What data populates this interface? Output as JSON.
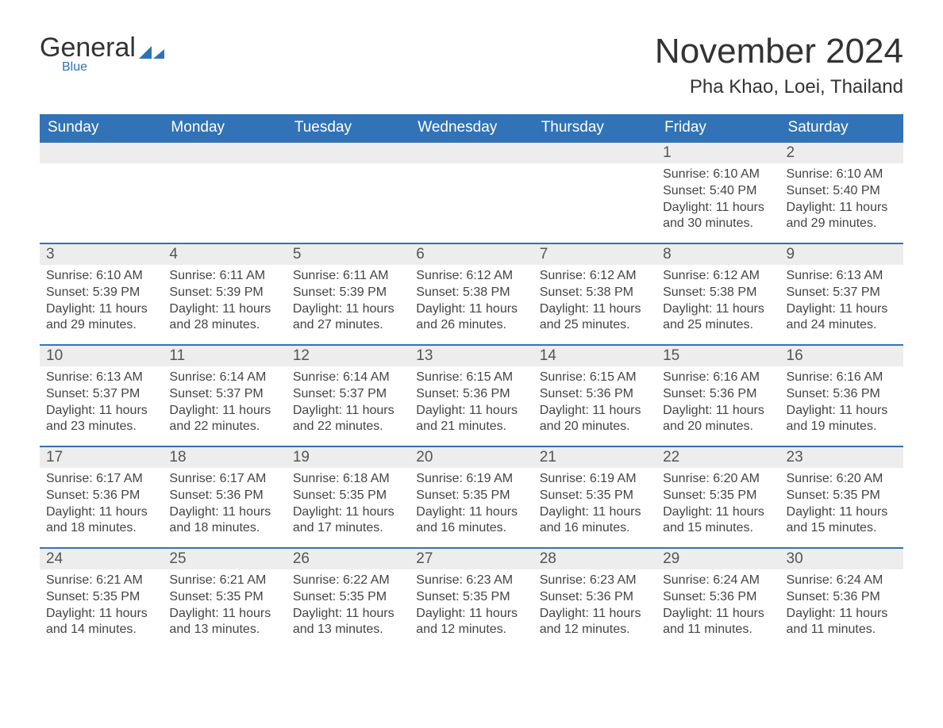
{
  "logo": {
    "general": "General",
    "blue": "Blue"
  },
  "title": "November 2024",
  "location": "Pha Khao, Loei, Thailand",
  "colors": {
    "header_bg": "#3273b7",
    "header_text": "#ffffff",
    "day_num_bg": "#ededed",
    "day_border": "#3273b7",
    "text": "#444444",
    "logo_blue": "#2f72b6",
    "logo_dark": "#333333",
    "background": "#ffffff"
  },
  "day_headers": [
    "Sunday",
    "Monday",
    "Tuesday",
    "Wednesday",
    "Thursday",
    "Friday",
    "Saturday"
  ],
  "weeks": [
    [
      null,
      null,
      null,
      null,
      null,
      {
        "day": "1",
        "sunrise": "Sunrise: 6:10 AM",
        "sunset": "Sunset: 5:40 PM",
        "daylight": "Daylight: 11 hours and 30 minutes."
      },
      {
        "day": "2",
        "sunrise": "Sunrise: 6:10 AM",
        "sunset": "Sunset: 5:40 PM",
        "daylight": "Daylight: 11 hours and 29 minutes."
      }
    ],
    [
      {
        "day": "3",
        "sunrise": "Sunrise: 6:10 AM",
        "sunset": "Sunset: 5:39 PM",
        "daylight": "Daylight: 11 hours and 29 minutes."
      },
      {
        "day": "4",
        "sunrise": "Sunrise: 6:11 AM",
        "sunset": "Sunset: 5:39 PM",
        "daylight": "Daylight: 11 hours and 28 minutes."
      },
      {
        "day": "5",
        "sunrise": "Sunrise: 6:11 AM",
        "sunset": "Sunset: 5:39 PM",
        "daylight": "Daylight: 11 hours and 27 minutes."
      },
      {
        "day": "6",
        "sunrise": "Sunrise: 6:12 AM",
        "sunset": "Sunset: 5:38 PM",
        "daylight": "Daylight: 11 hours and 26 minutes."
      },
      {
        "day": "7",
        "sunrise": "Sunrise: 6:12 AM",
        "sunset": "Sunset: 5:38 PM",
        "daylight": "Daylight: 11 hours and 25 minutes."
      },
      {
        "day": "8",
        "sunrise": "Sunrise: 6:12 AM",
        "sunset": "Sunset: 5:38 PM",
        "daylight": "Daylight: 11 hours and 25 minutes."
      },
      {
        "day": "9",
        "sunrise": "Sunrise: 6:13 AM",
        "sunset": "Sunset: 5:37 PM",
        "daylight": "Daylight: 11 hours and 24 minutes."
      }
    ],
    [
      {
        "day": "10",
        "sunrise": "Sunrise: 6:13 AM",
        "sunset": "Sunset: 5:37 PM",
        "daylight": "Daylight: 11 hours and 23 minutes."
      },
      {
        "day": "11",
        "sunrise": "Sunrise: 6:14 AM",
        "sunset": "Sunset: 5:37 PM",
        "daylight": "Daylight: 11 hours and 22 minutes."
      },
      {
        "day": "12",
        "sunrise": "Sunrise: 6:14 AM",
        "sunset": "Sunset: 5:37 PM",
        "daylight": "Daylight: 11 hours and 22 minutes."
      },
      {
        "day": "13",
        "sunrise": "Sunrise: 6:15 AM",
        "sunset": "Sunset: 5:36 PM",
        "daylight": "Daylight: 11 hours and 21 minutes."
      },
      {
        "day": "14",
        "sunrise": "Sunrise: 6:15 AM",
        "sunset": "Sunset: 5:36 PM",
        "daylight": "Daylight: 11 hours and 20 minutes."
      },
      {
        "day": "15",
        "sunrise": "Sunrise: 6:16 AM",
        "sunset": "Sunset: 5:36 PM",
        "daylight": "Daylight: 11 hours and 20 minutes."
      },
      {
        "day": "16",
        "sunrise": "Sunrise: 6:16 AM",
        "sunset": "Sunset: 5:36 PM",
        "daylight": "Daylight: 11 hours and 19 minutes."
      }
    ],
    [
      {
        "day": "17",
        "sunrise": "Sunrise: 6:17 AM",
        "sunset": "Sunset: 5:36 PM",
        "daylight": "Daylight: 11 hours and 18 minutes."
      },
      {
        "day": "18",
        "sunrise": "Sunrise: 6:17 AM",
        "sunset": "Sunset: 5:36 PM",
        "daylight": "Daylight: 11 hours and 18 minutes."
      },
      {
        "day": "19",
        "sunrise": "Sunrise: 6:18 AM",
        "sunset": "Sunset: 5:35 PM",
        "daylight": "Daylight: 11 hours and 17 minutes."
      },
      {
        "day": "20",
        "sunrise": "Sunrise: 6:19 AM",
        "sunset": "Sunset: 5:35 PM",
        "daylight": "Daylight: 11 hours and 16 minutes."
      },
      {
        "day": "21",
        "sunrise": "Sunrise: 6:19 AM",
        "sunset": "Sunset: 5:35 PM",
        "daylight": "Daylight: 11 hours and 16 minutes."
      },
      {
        "day": "22",
        "sunrise": "Sunrise: 6:20 AM",
        "sunset": "Sunset: 5:35 PM",
        "daylight": "Daylight: 11 hours and 15 minutes."
      },
      {
        "day": "23",
        "sunrise": "Sunrise: 6:20 AM",
        "sunset": "Sunset: 5:35 PM",
        "daylight": "Daylight: 11 hours and 15 minutes."
      }
    ],
    [
      {
        "day": "24",
        "sunrise": "Sunrise: 6:21 AM",
        "sunset": "Sunset: 5:35 PM",
        "daylight": "Daylight: 11 hours and 14 minutes."
      },
      {
        "day": "25",
        "sunrise": "Sunrise: 6:21 AM",
        "sunset": "Sunset: 5:35 PM",
        "daylight": "Daylight: 11 hours and 13 minutes."
      },
      {
        "day": "26",
        "sunrise": "Sunrise: 6:22 AM",
        "sunset": "Sunset: 5:35 PM",
        "daylight": "Daylight: 11 hours and 13 minutes."
      },
      {
        "day": "27",
        "sunrise": "Sunrise: 6:23 AM",
        "sunset": "Sunset: 5:35 PM",
        "daylight": "Daylight: 11 hours and 12 minutes."
      },
      {
        "day": "28",
        "sunrise": "Sunrise: 6:23 AM",
        "sunset": "Sunset: 5:36 PM",
        "daylight": "Daylight: 11 hours and 12 minutes."
      },
      {
        "day": "29",
        "sunrise": "Sunrise: 6:24 AM",
        "sunset": "Sunset: 5:36 PM",
        "daylight": "Daylight: 11 hours and 11 minutes."
      },
      {
        "day": "30",
        "sunrise": "Sunrise: 6:24 AM",
        "sunset": "Sunset: 5:36 PM",
        "daylight": "Daylight: 11 hours and 11 minutes."
      }
    ]
  ]
}
